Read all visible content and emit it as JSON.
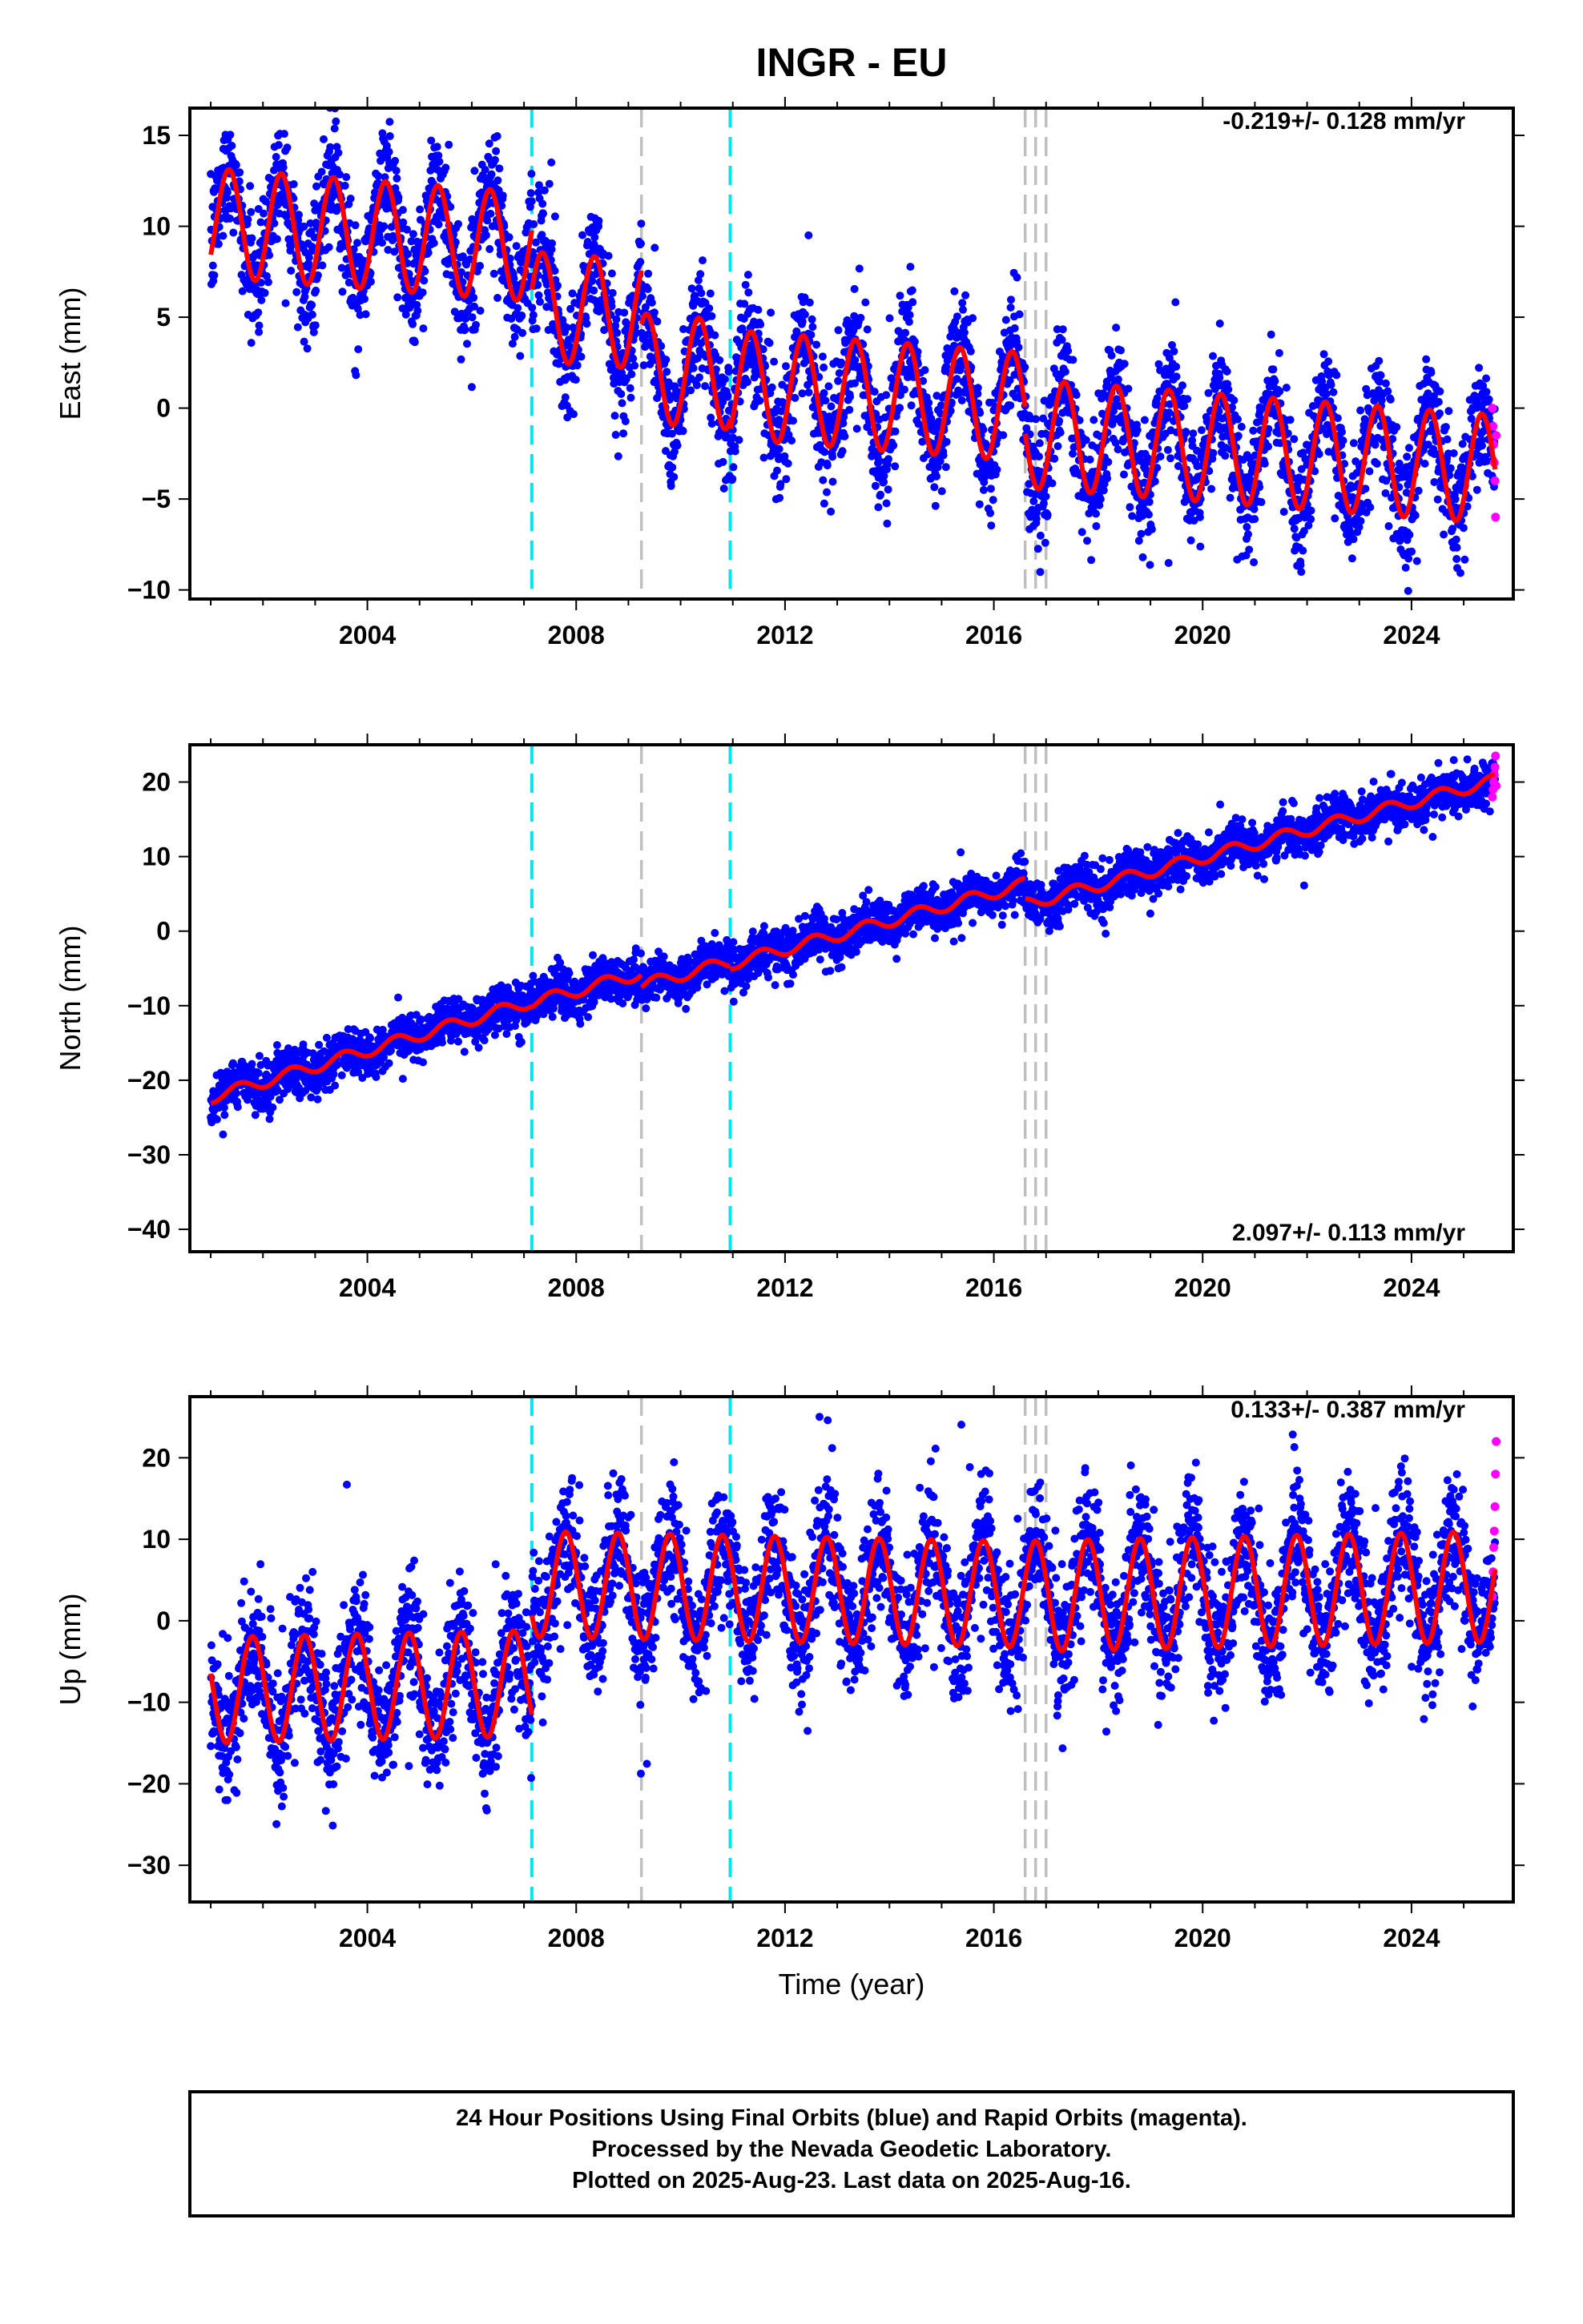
{
  "title": "INGR - EU",
  "colors": {
    "final_orbits": "#0000ff",
    "rapid_orbits": "#ff00ff",
    "model": "#ff0000",
    "antenna_change": "#00e5ee",
    "earthquake": "#bfbfbf"
  },
  "x_label": "Time (year)",
  "x_ticks": [
    "2004",
    "2008",
    "2012",
    "2016",
    "2020",
    "2024"
  ],
  "footer": {
    "line1": "24 Hour Positions Using Final Orbits (blue) and Rapid Orbits (magenta).",
    "line2": "Processed by the Nevada Geodetic Laboratory.",
    "line3": "Plotted on 2025-Aug-23. Last data on 2025-Aug-16."
  },
  "chart_data": [
    {
      "type": "scatter",
      "component": "East",
      "ylabel": "East (mm)",
      "rate_label": "-0.219+/- 0.128 mm/yr",
      "legend_position": "top-right",
      "xlim": [
        2000.6,
        2025.95
      ],
      "ylim": [
        -10.5,
        16.5
      ],
      "y_ticks": [
        15,
        10,
        5,
        0,
        -5,
        -10
      ],
      "x_ticks": [
        2004,
        2008,
        2012,
        2016,
        2020,
        2024
      ],
      "grid": false,
      "vertical_lines": {
        "antenna_change": [
          2007.15,
          2010.95
        ],
        "earthquake": [
          2009.25,
          2016.6,
          2016.8,
          2017.0
        ]
      },
      "model": {
        "segments": [
          {
            "start": 2001.0,
            "end": 2007.15,
            "offset": 10.2,
            "slope": -0.219,
            "amplitude": 3.0,
            "phase": 0.1
          },
          {
            "start": 2007.15,
            "end": 2009.25,
            "offset": 5.6,
            "slope": -0.219,
            "amplitude": 3.0,
            "phase": 0.1
          },
          {
            "start": 2009.25,
            "end": 2010.95,
            "offset": 2.2,
            "slope": -0.219,
            "amplitude": 3.0,
            "phase": 0.1
          },
          {
            "start": 2010.95,
            "end": 2016.6,
            "offset": 1.3,
            "slope": -0.219,
            "amplitude": 3.0,
            "phase": 0.1
          },
          {
            "start": 2016.6,
            "end": 2025.6,
            "offset": -1.4,
            "slope": -0.219,
            "amplitude": 3.0,
            "phase": 0.1
          }
        ],
        "noise": 1.6
      },
      "rapid_points": [
        0,
        -1,
        -2,
        -3,
        -4,
        -6,
        -1.5
      ]
    },
    {
      "type": "scatter",
      "component": "North",
      "ylabel": "North (mm)",
      "rate_label": "2.097+/- 0.113 mm/yr",
      "legend_position": "bottom-right",
      "xlim": [
        2000.6,
        2025.95
      ],
      "ylim": [
        -43,
        25
      ],
      "y_ticks": [
        20,
        10,
        0,
        -10,
        -20,
        -30,
        -40
      ],
      "x_ticks": [
        2004,
        2008,
        2012,
        2016,
        2020,
        2024
      ],
      "grid": false,
      "vertical_lines": {
        "antenna_change": [
          2007.15,
          2010.95
        ],
        "earthquake": [
          2009.25,
          2016.6,
          2016.8,
          2017.0
        ]
      },
      "model": {
        "segments": [
          {
            "start": 2001.0,
            "end": 2007.15,
            "offset": -22.3,
            "slope": 2.097,
            "amplitude": 0.8,
            "phase": 0.3
          },
          {
            "start": 2007.15,
            "end": 2009.25,
            "offset": -9.6,
            "slope": 1.9,
            "amplitude": 0.8,
            "phase": 0.3
          },
          {
            "start": 2009.25,
            "end": 2010.95,
            "offset": -7.3,
            "slope": 1.9,
            "amplitude": 0.8,
            "phase": 0.3
          },
          {
            "start": 2010.95,
            "end": 2016.6,
            "offset": -4.4,
            "slope": 1.9,
            "amplitude": 0.8,
            "phase": 0.3
          },
          {
            "start": 2016.6,
            "end": 2025.6,
            "offset": 3.6,
            "slope": 1.85,
            "amplitude": 0.8,
            "phase": 0.3
          }
        ],
        "noise": 1.5
      },
      "rapid_points": [
        18,
        19,
        20,
        21,
        22,
        23.5,
        19.5
      ]
    },
    {
      "type": "scatter",
      "component": "Up",
      "ylabel": "Up (mm)",
      "rate_label": "0.133+/- 0.387 mm/yr",
      "legend_position": "top-right",
      "xlim": [
        2000.6,
        2025.95
      ],
      "ylim": [
        -34.5,
        27.5
      ],
      "y_ticks": [
        20,
        10,
        0,
        -10,
        -20,
        -30
      ],
      "x_ticks": [
        2004,
        2008,
        2012,
        2016,
        2020,
        2024
      ],
      "grid": false,
      "vertical_lines": {
        "antenna_change": [
          2007.15,
          2010.95
        ],
        "earthquake": [
          2009.25,
          2016.6,
          2016.8,
          2017.0
        ]
      },
      "model": {
        "segments": [
          {
            "start": 2001.0,
            "end": 2007.15,
            "offset": -8.5,
            "slope": 0.133,
            "amplitude": 6.5,
            "phase": 0.55
          },
          {
            "start": 2007.15,
            "end": 2016.6,
            "offset": 4.5,
            "slope": -0.133,
            "amplitude": 6.5,
            "phase": 0.55
          },
          {
            "start": 2016.6,
            "end": 2025.6,
            "offset": 3.0,
            "slope": 0.133,
            "amplitude": 6.8,
            "phase": 0.55
          }
        ],
        "noise": 4.0
      },
      "rapid_points": [
        3,
        6,
        9,
        11,
        14,
        18,
        22
      ]
    }
  ]
}
